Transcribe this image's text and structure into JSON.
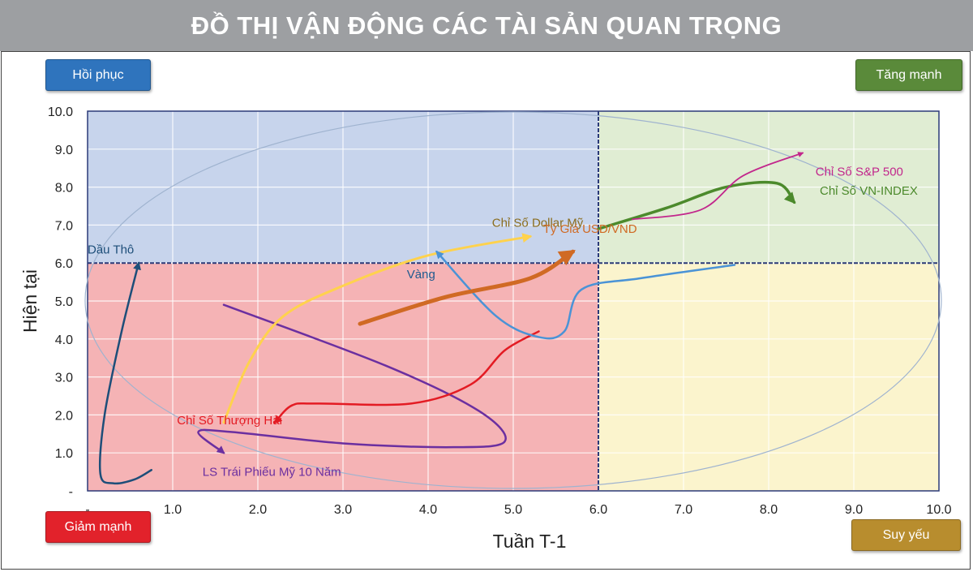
{
  "header": {
    "title": "ĐỒ THỊ VẬN ĐỘNG CÁC TÀI SẢN QUAN TRỌNG"
  },
  "quadrant_labels": {
    "top_left": "Hồi phục",
    "top_right": "Tăng mạnh",
    "bottom_left": "Giảm mạnh",
    "bottom_right": "Suy yếu"
  },
  "colors": {
    "top_left_bg": "#c7d4ec",
    "top_right_bg": "#e0edd3",
    "bottom_left_bg": "#f5b3b5",
    "bottom_right_bg": "#fbf4cd",
    "btn_top_left": "#2f74bd",
    "btn_top_right": "#5a8a3a",
    "btn_bottom_left": "#e2222b",
    "btn_bottom_right": "#b88d2e"
  },
  "chart_data": {
    "type": "line",
    "xlabel": "Tuần T-1",
    "ylabel": "Hiện tại",
    "xlim": [
      0,
      10
    ],
    "ylim": [
      0,
      10
    ],
    "xticks": [
      "-",
      "1.0",
      "2.0",
      "3.0",
      "4.0",
      "5.0",
      "6.0",
      "7.0",
      "8.0",
      "9.0",
      "10.0"
    ],
    "yticks": [
      "-",
      "1.0",
      "2.0",
      "3.0",
      "4.0",
      "5.0",
      "6.0",
      "7.0",
      "8.0",
      "9.0",
      "10.0"
    ],
    "grid": true,
    "divider": {
      "x": 6.0,
      "y": 6.0
    },
    "series": [
      {
        "name": "Dầu Thô",
        "color": "#1d4e79",
        "width": 2.5,
        "points": [
          [
            0.75,
            0.55
          ],
          [
            0.55,
            0.3
          ],
          [
            0.3,
            0.2
          ],
          [
            0.15,
            0.45
          ],
          [
            0.2,
            2.0
          ],
          [
            0.4,
            4.2
          ],
          [
            0.6,
            6.0
          ]
        ],
        "label_pos": [
          0.0,
          6.25
        ],
        "label_anchor": "start"
      },
      {
        "name": "LS Trái Phiếu Mỹ 10 Năm",
        "color": "#6b2fa0",
        "width": 2.5,
        "points": [
          [
            1.6,
            4.9
          ],
          [
            3.5,
            3.3
          ],
          [
            4.6,
            2.1
          ],
          [
            4.9,
            1.3
          ],
          [
            4.3,
            1.15
          ],
          [
            3.0,
            1.25
          ],
          [
            1.7,
            1.55
          ],
          [
            1.3,
            1.55
          ],
          [
            1.6,
            1.0
          ]
        ],
        "label_pos": [
          1.35,
          0.4
        ],
        "label_anchor": "start"
      },
      {
        "name": "Chỉ Số Thượng Hải",
        "color": "#e31b23",
        "width": 2.5,
        "points": [
          [
            5.3,
            4.2
          ],
          [
            4.9,
            3.7
          ],
          [
            4.5,
            2.8
          ],
          [
            3.8,
            2.3
          ],
          [
            2.7,
            2.3
          ],
          [
            2.4,
            2.25
          ],
          [
            2.2,
            1.8
          ]
        ],
        "label_pos": [
          1.05,
          1.75
        ],
        "label_anchor": "start"
      },
      {
        "name": "Chỉ Số Dollar Mỹ",
        "color": "#ffd24d",
        "width": 3,
        "points": [
          [
            1.6,
            1.8
          ],
          [
            1.9,
            3.4
          ],
          [
            2.3,
            4.6
          ],
          [
            3.0,
            5.4
          ],
          [
            4.0,
            6.2
          ],
          [
            5.2,
            6.7
          ]
        ],
        "label_pos": [
          4.75,
          6.95
        ],
        "label_anchor": "start",
        "label_color": "#8a6d1f"
      },
      {
        "name": "Vàng",
        "color": "#4a93d6",
        "width": 2.5,
        "points": [
          [
            7.6,
            5.95
          ],
          [
            6.5,
            5.6
          ],
          [
            5.8,
            5.3
          ],
          [
            5.6,
            4.2
          ],
          [
            5.3,
            4.05
          ],
          [
            4.8,
            4.6
          ],
          [
            4.1,
            6.3
          ]
        ],
        "label_pos": [
          3.75,
          5.6
        ],
        "label_anchor": "start",
        "label_color": "#1f5a8f"
      },
      {
        "name": "Tỷ Giá USD/VND",
        "color": "#d06a24",
        "width": 5,
        "points": [
          [
            3.2,
            4.4
          ],
          [
            4.2,
            5.1
          ],
          [
            5.2,
            5.6
          ],
          [
            5.7,
            6.3
          ]
        ],
        "label_pos": [
          5.35,
          6.8
        ],
        "label_anchor": "start"
      },
      {
        "name": "Chỉ Số VN-INDEX",
        "color": "#4c8a2c",
        "width": 3.5,
        "points": [
          [
            6.0,
            6.9
          ],
          [
            6.8,
            7.45
          ],
          [
            7.5,
            8.0
          ],
          [
            8.1,
            8.1
          ],
          [
            8.3,
            7.6
          ]
        ],
        "label_pos": [
          8.6,
          7.8
        ],
        "label_anchor": "start"
      },
      {
        "name": "Chỉ Số S&P 500",
        "color": "#c2278c",
        "width": 1.8,
        "points": [
          [
            6.4,
            7.15
          ],
          [
            7.2,
            7.4
          ],
          [
            7.7,
            8.3
          ],
          [
            8.4,
            8.9
          ]
        ],
        "label_pos": [
          8.55,
          8.3
        ],
        "label_anchor": "start"
      }
    ]
  }
}
